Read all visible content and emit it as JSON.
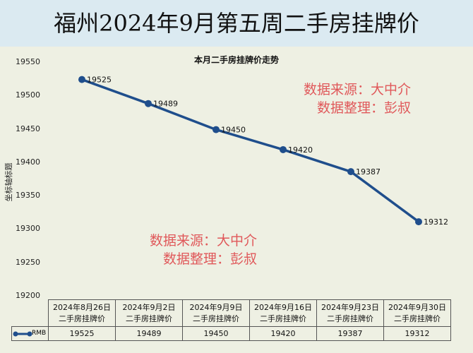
{
  "title": "福州2024年9月第五周二手房挂牌价",
  "watermark": {
    "line1": "数据来源：大中介",
    "line2": "数据整理：彭叔"
  },
  "colors": {
    "series": "#1f4e8c",
    "watermark": "#e0585a"
  },
  "chart_data": {
    "type": "line",
    "title": "本月二手房挂牌价走势",
    "ylabel": "坐标轴标题",
    "xlabel": "",
    "ylim": [
      19200,
      19550
    ],
    "yticks": [
      19550,
      19500,
      19450,
      19400,
      19350,
      19300,
      19250,
      19200
    ],
    "categories": [
      "2024年8月26日",
      "2024年9月2日",
      "2024年9月9日",
      "2024年9月16日",
      "2024年9月23日",
      "2024年9月30日"
    ],
    "category_suffix": "二手房挂牌价",
    "series": [
      {
        "name": "RMB",
        "values": [
          19525,
          19489,
          19450,
          19420,
          19387,
          19312
        ]
      }
    ],
    "legend": "bottom-left (data table)"
  }
}
